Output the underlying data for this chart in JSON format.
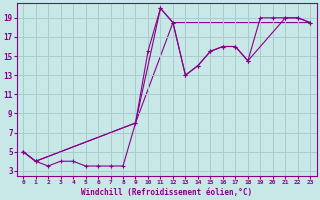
{
  "xlabel": "Windchill (Refroidissement éolien,°C)",
  "background_color": "#c8e8e8",
  "grid_color": "#aacccc",
  "line_color": "#880088",
  "xlim": [
    -0.5,
    23.5
  ],
  "ylim": [
    2.5,
    20.5
  ],
  "xticks": [
    0,
    1,
    2,
    3,
    4,
    5,
    6,
    7,
    8,
    9,
    10,
    11,
    12,
    13,
    14,
    15,
    16,
    17,
    18,
    19,
    20,
    21,
    22,
    23
  ],
  "yticks": [
    3,
    5,
    7,
    9,
    11,
    13,
    15,
    17,
    19
  ],
  "series1_x": [
    0,
    1,
    2,
    3,
    4,
    5,
    6,
    7,
    8,
    9,
    10,
    11,
    12,
    13,
    14,
    15,
    16,
    17,
    18,
    19,
    20,
    21,
    22,
    23
  ],
  "series1_y": [
    5,
    4,
    3.5,
    4,
    4,
    3.5,
    3.5,
    3.5,
    3.5,
    8,
    15.5,
    20,
    18.5,
    13,
    14,
    15.5,
    16,
    16,
    14.5,
    19,
    19,
    19,
    19,
    18.5
  ],
  "series2_x": [
    0,
    1,
    9,
    11,
    12,
    13,
    14,
    15,
    16,
    17,
    18,
    21,
    22,
    23
  ],
  "series2_y": [
    5,
    4,
    8,
    20,
    18.5,
    13,
    14,
    15.5,
    16,
    16,
    14.5,
    19,
    19,
    18.5
  ],
  "series3_x": [
    0,
    1,
    9,
    12,
    23
  ],
  "series3_y": [
    5,
    4,
    8,
    18.5,
    18.5
  ]
}
